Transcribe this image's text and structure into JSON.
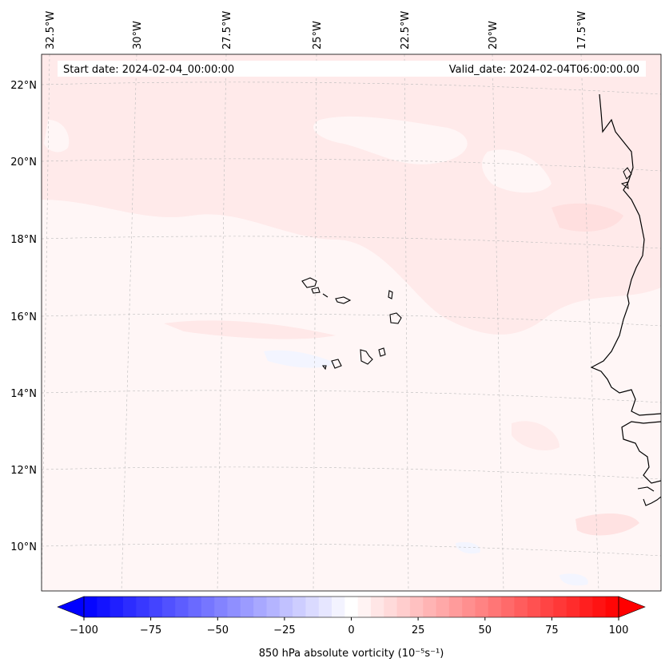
{
  "header": {
    "start_label": "Start date: 2024-02-04_00:00:00",
    "valid_label": "Valid_date: 2024-02-04T06:00:00.00"
  },
  "map": {
    "lon_labels": [
      "32.5°W",
      "30°W",
      "27.5°W",
      "25°W",
      "22.5°W",
      "20°W",
      "17.5°W"
    ],
    "lat_labels": [
      "22°N",
      "20°N",
      "18°N",
      "16°N",
      "14°N",
      "12°N",
      "10°N"
    ],
    "field_colors": {
      "background": "#fff6f6",
      "light_red": "#ffe9e9",
      "medium_red": "#ffdcdc",
      "light_blue": "#f4f6ff",
      "coast": "#000000",
      "grid": "#bbbbbb"
    }
  },
  "colorbar": {
    "label": "850 hPa absolute vorticity (10⁻⁵s⁻¹)",
    "ticks": [
      "−100",
      "−75",
      "−50",
      "−25",
      "0",
      "25",
      "50",
      "75",
      "100"
    ],
    "min_color": "#0000ff",
    "mid_color": "#ffffff",
    "max_color": "#ff0000",
    "levels": 41
  }
}
